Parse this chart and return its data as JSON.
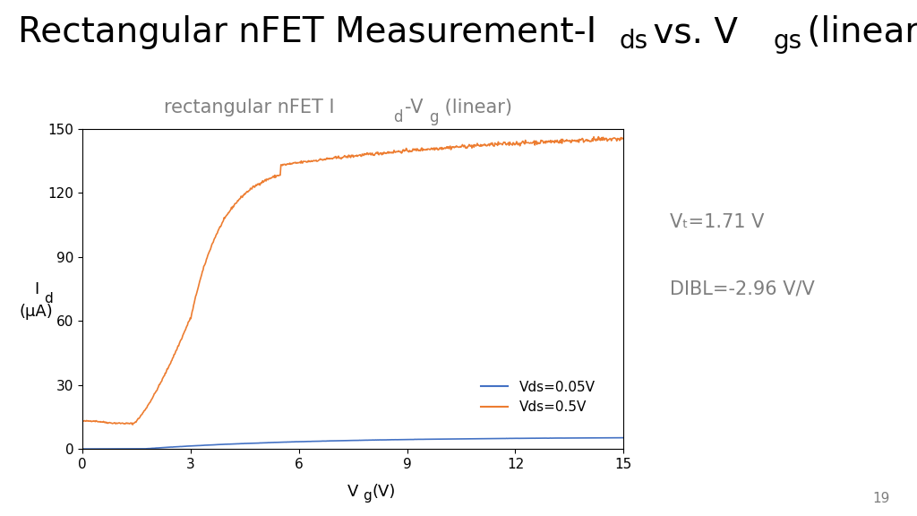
{
  "xlim": [
    0,
    15
  ],
  "ylim": [
    0,
    150
  ],
  "xticks": [
    0,
    3,
    6,
    9,
    12,
    15
  ],
  "yticks": [
    0,
    30,
    60,
    90,
    120,
    150
  ],
  "vt_text": "Vₜ=1.71 V",
  "dibl_text": "DIBL=-2.96 V/V",
  "page_number": "19",
  "line_blue_color": "#4472C4",
  "line_orange_color": "#ED7D31",
  "legend_labels": [
    "Vds=0.05V",
    "Vds=0.5V"
  ],
  "background_color": "#FFFFFF",
  "plot_title_fontsize": 15,
  "axis_label_fontsize": 13,
  "annotation_fontsize": 15,
  "legend_fontsize": 11,
  "tick_fontsize": 11,
  "title_fontsize": 28
}
